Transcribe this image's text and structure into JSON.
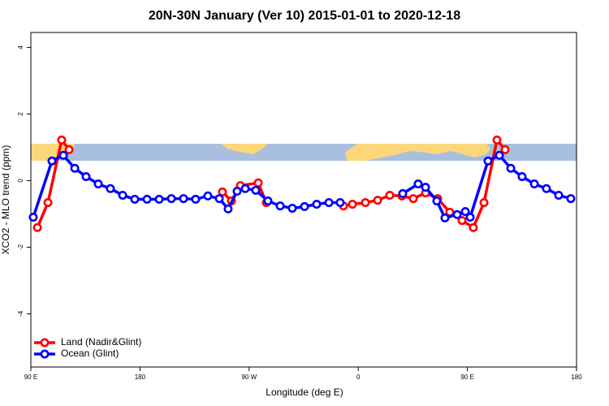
{
  "chart_data": {
    "type": "line",
    "title": "20N-30N January (Ver 10)   2015-01-01 to 2020-12-18",
    "x_label": "Longitude (deg E)",
    "y_label": "XCO2 - MLO trend (ppm)",
    "xlim": [
      90,
      540
    ],
    "ylim": [
      -5.6,
      4.45
    ],
    "xticks": [
      {
        "value": 90,
        "label": "90 E"
      },
      180,
      {
        "value": 270,
        "label": "90 W"
      },
      {
        "value": 360,
        "label": "0"
      },
      {
        "value": 450,
        "label": "90 E"
      },
      {
        "value": 540,
        "label": "180"
      }
    ],
    "yticks": [
      -4,
      -2,
      0,
      2,
      4
    ],
    "legend": "bottom-left",
    "series": [
      {
        "name": "Land (Nadir&Glint)",
        "color": "#ff0000",
        "x": [
          95.4,
          104.1,
          115.4,
          121.5,
          185.8,
          248,
          255.4,
          262.8,
          277.5,
          284.2,
          315.7,
          347.8,
          355.2,
          365.9,
          376,
          386,
          396,
          405.4,
          415.5,
          425.5,
          435.5,
          445.6,
          454.9,
          463.7,
          474.4,
          481.1
        ],
        "values": [
          -1.41,
          -0.66,
          1.22,
          0.93,
          null,
          -0.34,
          -0.61,
          -0.15,
          -0.07,
          -0.66,
          null,
          -0.76,
          -0.71,
          -0.66,
          -0.59,
          -0.44,
          -0.46,
          -0.54,
          -0.37,
          -0.54,
          -0.95,
          -1.2,
          -1.41,
          -0.66,
          1.22,
          0.93
        ]
      },
      {
        "name": "Ocean (Glint)",
        "color": "#0000ff",
        "x": [
          92,
          107.4,
          116.8,
          126.2,
          135.5,
          145.6,
          155.6,
          165.7,
          175.7,
          185.8,
          195.8,
          205.9,
          215.9,
          225.9,
          236,
          245.4,
          252.7,
          260.1,
          266.8,
          275.5,
          285.5,
          295.6,
          305.6,
          315.7,
          325.7,
          335.8,
          345.1,
          365.9,
          396.7,
          409.4,
          415.5,
          424.8,
          431.5,
          441.6,
          448.3,
          452.3,
          467,
          476.4,
          485.8,
          495.1,
          505.2,
          515.2,
          525.3,
          535.3
        ],
        "values": [
          -1.1,
          0.59,
          0.76,
          0.37,
          0.12,
          -0.1,
          -0.24,
          -0.44,
          -0.56,
          -0.56,
          -0.56,
          -0.54,
          -0.54,
          -0.56,
          -0.46,
          -0.54,
          -0.85,
          -0.32,
          -0.24,
          -0.29,
          -0.61,
          -0.76,
          -0.83,
          -0.78,
          -0.71,
          -0.66,
          -0.66,
          null,
          -0.39,
          -0.1,
          -0.2,
          -0.61,
          -1.12,
          -1.02,
          -0.93,
          -1.1,
          0.59,
          0.76,
          0.37,
          0.12,
          -0.1,
          -0.24,
          -0.44,
          -0.54
        ]
      }
    ]
  }
}
